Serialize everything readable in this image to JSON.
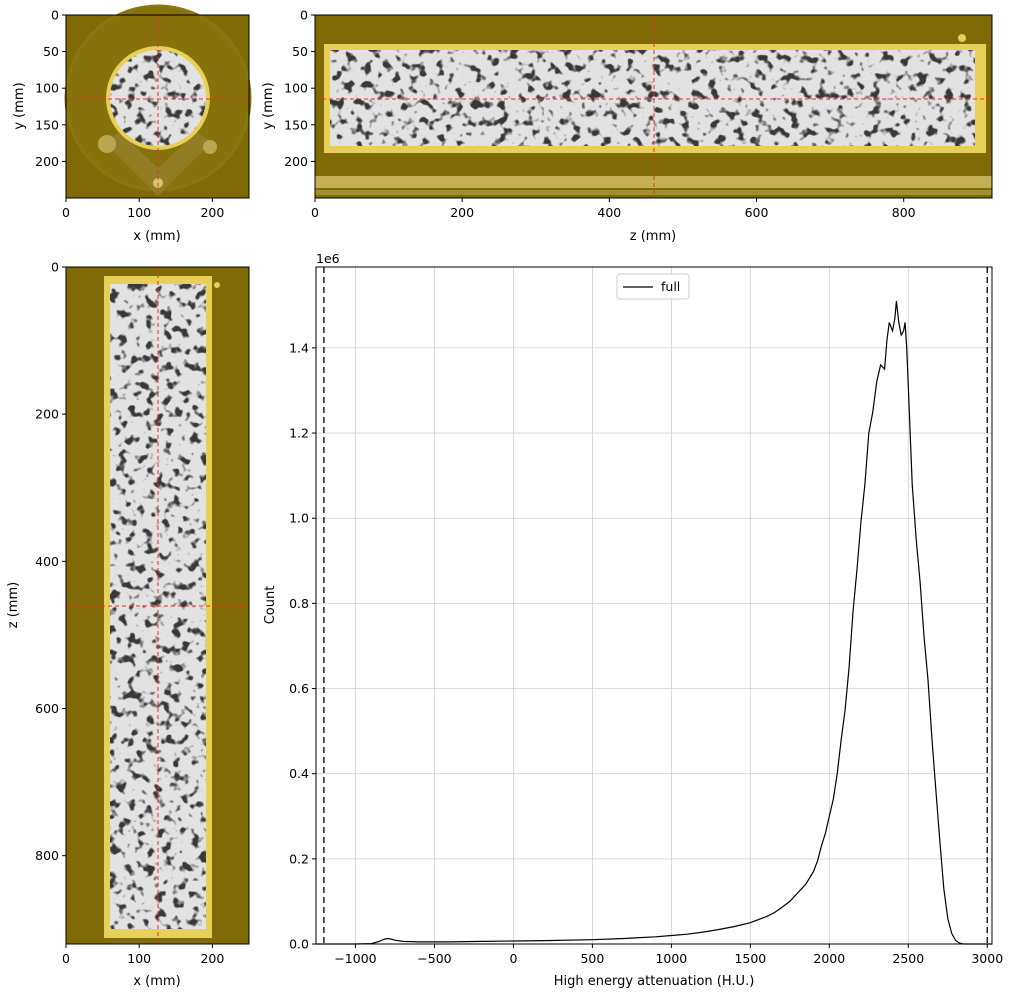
{
  "colors": {
    "slice_background": "#7f6a05",
    "sample_fill": "#e2e2e2",
    "container": "#e8cf57",
    "crosshair": "#e8302a",
    "histogram_line": "#000000",
    "grid": "#d0d0d0"
  },
  "chart_data": [
    {
      "type": "image",
      "panel": "axial slice",
      "xlabel": "x (mm)",
      "ylabel": "y (mm)",
      "xlim": [
        0,
        250
      ],
      "ylim": [
        250,
        0
      ],
      "xticks": [
        "0",
        "100",
        "200"
      ],
      "yticks": [
        "0",
        "50",
        "100",
        "150",
        "200"
      ],
      "crosshair": {
        "x": 125,
        "y": 114
      }
    },
    {
      "type": "image",
      "panel": "coronal slice",
      "xlabel": "z (mm)",
      "ylabel": "y (mm)",
      "xlim": [
        0,
        920
      ],
      "ylim": [
        250,
        0
      ],
      "xticks": [
        "0",
        "200",
        "400",
        "600",
        "800"
      ],
      "yticks": [
        "0",
        "50",
        "100",
        "150",
        "200"
      ],
      "crosshair": {
        "x": 460,
        "y": 114
      }
    },
    {
      "type": "image",
      "panel": "sagittal slice",
      "xlabel": "x (mm)",
      "ylabel": "z (mm)",
      "xlim": [
        0,
        250
      ],
      "ylim": [
        920,
        0
      ],
      "xticks": [
        "0",
        "100",
        "200"
      ],
      "yticks": [
        "0",
        "200",
        "400",
        "600",
        "800"
      ],
      "crosshair": {
        "x": 125,
        "y": 460
      }
    },
    {
      "type": "line",
      "xlabel": "High energy attenuation (H.U.)",
      "ylabel": "Count",
      "offset_label": "1e6",
      "xlim": [
        -1250,
        3030
      ],
      "ylim": [
        0,
        1.59
      ],
      "xticks": [
        "−1000",
        "−500",
        "0",
        "500",
        "1000",
        "1500",
        "2000",
        "2500",
        "3000"
      ],
      "yticks": [
        "0.0",
        "0.2",
        "0.4",
        "0.6",
        "0.8",
        "1.0",
        "1.2",
        "1.4"
      ],
      "grid": true,
      "legend": {
        "placement": "upper center",
        "entries": [
          "full"
        ]
      },
      "vlines": [
        -1200,
        3000
      ],
      "series": [
        {
          "name": "full",
          "x": [
            -1250,
            -1000,
            -900,
            -850,
            -820,
            -800,
            -780,
            -750,
            -700,
            -600,
            -500,
            -400,
            -200,
            0,
            200,
            500,
            700,
            900,
            1000,
            1100,
            1200,
            1300,
            1400,
            1500,
            1550,
            1600,
            1650,
            1700,
            1750,
            1800,
            1850,
            1900,
            1925,
            1950,
            1975,
            2000,
            2025,
            2050,
            2075,
            2100,
            2125,
            2150,
            2175,
            2200,
            2225,
            2250,
            2275,
            2300,
            2325,
            2350,
            2365,
            2380,
            2400,
            2415,
            2425,
            2440,
            2455,
            2470,
            2480,
            2490,
            2500,
            2525,
            2550,
            2575,
            2600,
            2625,
            2650,
            2675,
            2700,
            2725,
            2750,
            2775,
            2800,
            2825,
            2850,
            2900,
            3000,
            3030
          ],
          "y": [
            0,
            0,
            0.001,
            0.006,
            0.011,
            0.013,
            0.012,
            0.009,
            0.006,
            0.005,
            0.005,
            0.005,
            0.006,
            0.007,
            0.008,
            0.01,
            0.013,
            0.017,
            0.02,
            0.023,
            0.028,
            0.034,
            0.041,
            0.05,
            0.057,
            0.064,
            0.073,
            0.086,
            0.1,
            0.12,
            0.14,
            0.17,
            0.195,
            0.23,
            0.26,
            0.3,
            0.34,
            0.4,
            0.48,
            0.55,
            0.65,
            0.78,
            0.88,
            0.99,
            1.08,
            1.2,
            1.25,
            1.32,
            1.36,
            1.35,
            1.42,
            1.46,
            1.44,
            1.47,
            1.51,
            1.46,
            1.43,
            1.44,
            1.46,
            1.4,
            1.31,
            1.08,
            0.95,
            0.85,
            0.72,
            0.62,
            0.48,
            0.36,
            0.24,
            0.13,
            0.06,
            0.025,
            0.008,
            0.002,
            0,
            0,
            0,
            0
          ]
        }
      ]
    }
  ]
}
